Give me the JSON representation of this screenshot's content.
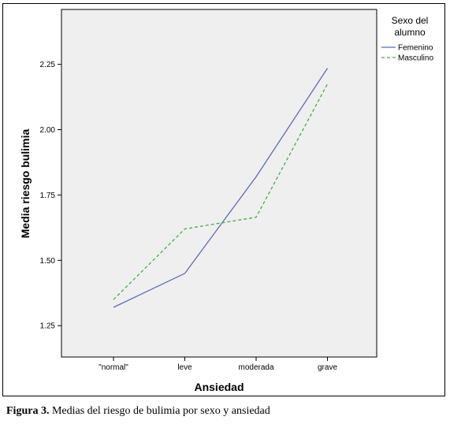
{
  "caption": {
    "label": "Figura 3.",
    "text": " Medias del riesgo de bulimia por sexo y ansiedad"
  },
  "chart_data": {
    "type": "line",
    "xlabel": "Ansiedad",
    "ylabel": "Media riesgo bulimia",
    "categories": [
      "\"normal\"",
      "leve",
      "moderada",
      "grave"
    ],
    "ylim": [
      1.13,
      2.46
    ],
    "yticks": [
      1.25,
      1.5,
      1.75,
      2.0,
      2.25
    ],
    "ytick_labels": [
      "1.25",
      "1.50",
      "1.75",
      "2.00",
      "2.25"
    ],
    "grid": false,
    "plot_background": "#efefef",
    "legend": {
      "title_lines": [
        "Sexo del",
        "alumno"
      ],
      "placement": "right"
    },
    "series": [
      {
        "name": "Femenino",
        "values": [
          1.32,
          1.45,
          1.82,
          2.235
        ],
        "color": "#5b6bbb",
        "style": "solid"
      },
      {
        "name": "Masculino",
        "values": [
          1.35,
          1.62,
          1.665,
          2.175
        ],
        "color": "#3fb23f",
        "style": "dashed"
      }
    ]
  }
}
